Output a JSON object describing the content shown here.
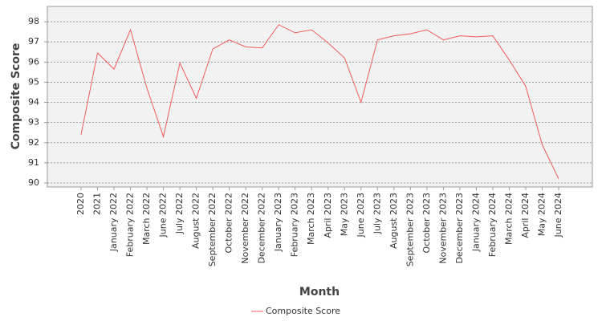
{
  "chart_data": {
    "type": "line",
    "x_label": "Month",
    "y_label": "Composite Score",
    "categories": [
      "2020",
      "2021",
      "January 2022",
      "February 2022",
      "March 2022",
      "June 2022",
      "July 2022",
      "August 2022",
      "September 2022",
      "October 2022",
      "November 2022",
      "December 2022",
      "January 2023",
      "February 2023",
      "March 2023",
      "April 2023",
      "May 2023",
      "June 2023",
      "July 2023",
      "August 2023",
      "September 2023",
      "October 2023",
      "November 2023",
      "December 2023",
      "January 2024",
      "February 2024",
      "March 2024",
      "April 2024",
      "May 2024",
      "June 2024"
    ],
    "series": [
      {
        "name": "Composite Score",
        "color": "#f25c5c",
        "values": [
          92.4,
          96.45,
          95.65,
          97.6,
          94.7,
          92.3,
          95.95,
          94.2,
          96.65,
          97.1,
          96.75,
          96.7,
          97.85,
          97.45,
          97.6,
          96.95,
          96.2,
          94.0,
          97.1,
          97.3,
          97.4,
          97.6,
          97.1,
          97.3,
          97.25,
          97.3,
          96.1,
          94.8,
          91.9,
          90.2
        ]
      }
    ],
    "ylim": [
      89.8,
      98.76
    ],
    "yticks": [
      90,
      91,
      92,
      93,
      94,
      95,
      96,
      97,
      98
    ],
    "grid": true
  }
}
